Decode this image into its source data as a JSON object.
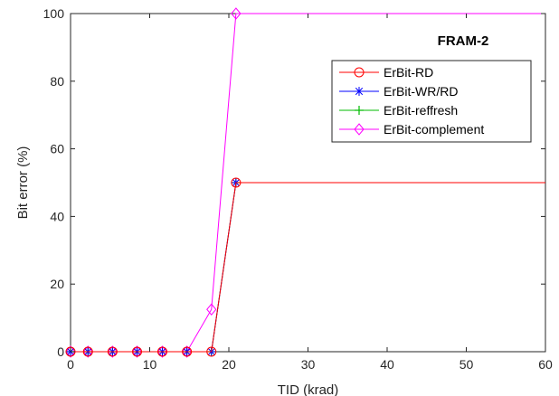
{
  "chart_data": {
    "type": "line",
    "xlabel": "TID (krad)",
    "ylabel": "Bit error (%)",
    "xlim": [
      0,
      60
    ],
    "ylim": [
      0,
      100
    ],
    "xticks": [
      0,
      10,
      20,
      30,
      40,
      50,
      60
    ],
    "yticks": [
      0,
      20,
      40,
      60,
      80,
      100
    ],
    "grid": false,
    "annotation": "FRAM-2",
    "legend_position": "top-right",
    "series": [
      {
        "name": "ErBit-RD",
        "color": "#ff0000",
        "marker": "circle",
        "x": [
          0,
          2.2,
          5.3,
          8.4,
          11.6,
          14.7,
          17.8,
          20.9,
          60
        ],
        "y": [
          0,
          0,
          0,
          0,
          0,
          0,
          0,
          50,
          50
        ]
      },
      {
        "name": "ErBit-WR/RD",
        "color": "#0000ff",
        "marker": "asterisk",
        "x": [
          0,
          2.2,
          5.3,
          8.4,
          11.6,
          14.7,
          17.8,
          20.9,
          60
        ],
        "y": [
          0,
          0,
          0,
          0,
          0,
          0,
          0,
          50,
          50
        ]
      },
      {
        "name": "ErBit-reffresh",
        "color": "#00bb00",
        "marker": "plus",
        "x": [
          0,
          2.2,
          5.3,
          8.4,
          11.6,
          14.7,
          17.8,
          20.9,
          60
        ],
        "y": [
          0,
          0,
          0,
          0,
          0,
          0,
          0,
          50,
          50
        ]
      },
      {
        "name": "ErBit-complement",
        "color": "#ff00ff",
        "marker": "diamond",
        "x": [
          0,
          2.2,
          5.3,
          8.4,
          11.6,
          14.7,
          17.8,
          20.9,
          60
        ],
        "y": [
          0,
          0,
          0,
          0,
          0,
          0,
          12.5,
          100,
          100
        ]
      }
    ]
  }
}
